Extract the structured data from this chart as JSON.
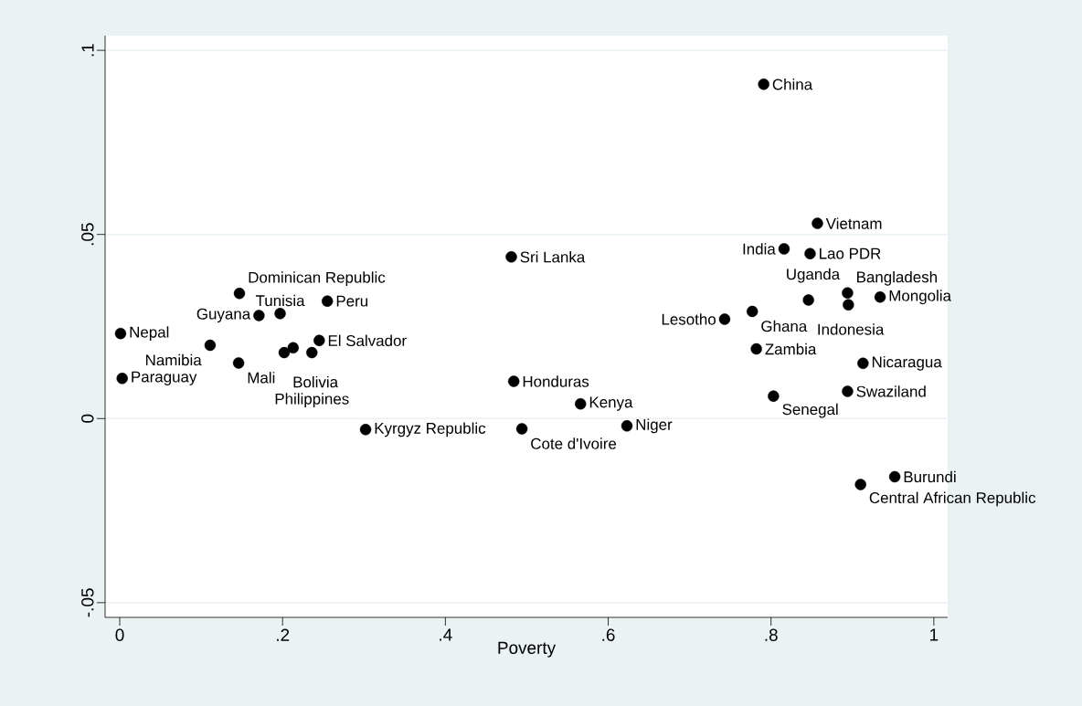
{
  "chart_data": {
    "type": "scatter",
    "xlabel": "Poverty",
    "x": [
      0.791,
      0.857,
      0.816,
      0.848,
      0.894,
      0.934,
      0.846,
      0.895,
      0.777,
      0.743,
      0.782,
      0.913,
      0.894,
      0.803,
      0.952,
      0.91,
      0.623,
      0.494,
      0.302,
      0.566,
      0.484,
      0.481,
      0.147,
      0.255,
      0.171,
      0.197,
      0.001,
      0.003,
      0.111,
      0.146,
      0.245,
      0.202,
      0.213,
      0.236
    ],
    "values": [
      0.0908,
      0.053,
      0.0461,
      0.0448,
      0.0341,
      0.033,
      0.0322,
      0.0309,
      0.0291,
      0.027,
      0.0189,
      0.015,
      0.0074,
      0.0061,
      -0.0158,
      -0.0179,
      -0.002,
      -0.0028,
      -0.003,
      0.004,
      0.0101,
      0.0439,
      0.034,
      0.0319,
      0.028,
      0.0285,
      0.0231,
      0.0109,
      0.0199,
      0.0151,
      0.0212,
      0.0179,
      0.0192,
      0.0179
    ],
    "color": "#000000",
    "marker": "circle",
    "grid": "y",
    "xlim": [
      -0.018,
      1.017
    ],
    "ylim": [
      -0.054,
      0.104
    ],
    "xticks": [
      0,
      {
        "value": 0.2,
        "label": ".2"
      },
      {
        "value": 0.4,
        "label": ".4"
      },
      {
        "value": 0.6,
        "label": ".6"
      },
      {
        "value": 0.8,
        "label": ".8"
      },
      1
    ],
    "yticks": [
      {
        "value": -0.05,
        "label": "-.05"
      },
      0,
      {
        "value": 0.05,
        "label": ".05"
      },
      {
        "value": 0.1,
        "label": ".1"
      }
    ],
    "annotations": [
      {
        "text": "China",
        "x": 0.791,
        "y": 0.0908
      },
      {
        "text": "Vietnam",
        "x": 0.857,
        "y": 0.053
      },
      {
        "text": "India",
        "x": 0.816,
        "y": 0.0461
      },
      {
        "text": "Lao PDR",
        "x": 0.848,
        "y": 0.0448
      },
      {
        "text": "Bangladesh",
        "x": 0.894,
        "y": 0.0341
      },
      {
        "text": "Mongolia",
        "x": 0.934,
        "y": 0.033
      },
      {
        "text": "Indonesia",
        "x": 0.846,
        "y": 0.0322
      },
      {
        "text": "Uganda",
        "x": 0.895,
        "y": 0.0309
      },
      {
        "text": "Ghana",
        "x": 0.777,
        "y": 0.0291
      },
      {
        "text": "Lesotho",
        "x": 0.743,
        "y": 0.027
      },
      {
        "text": "Zambia",
        "x": 0.782,
        "y": 0.0189
      },
      {
        "text": "Nicaragua",
        "x": 0.913,
        "y": 0.015
      },
      {
        "text": "Swaziland",
        "x": 0.894,
        "y": 0.0074
      },
      {
        "text": "Senegal",
        "x": 0.803,
        "y": 0.0061
      },
      {
        "text": "Burundi",
        "x": 0.952,
        "y": -0.0158
      },
      {
        "text": "Central African Republic",
        "x": 0.91,
        "y": -0.0179
      },
      {
        "text": "Niger",
        "x": 0.623,
        "y": -0.002
      },
      {
        "text": "Cote d'Ivoire",
        "x": 0.494,
        "y": -0.0028
      },
      {
        "text": "Kyrgyz Republic",
        "x": 0.302,
        "y": -0.003
      },
      {
        "text": "Kenya",
        "x": 0.566,
        "y": 0.004
      },
      {
        "text": "Honduras",
        "x": 0.484,
        "y": 0.0101
      },
      {
        "text": "Sri Lanka",
        "x": 0.481,
        "y": 0.0439
      },
      {
        "text": "Dominican Republic",
        "x": 0.147,
        "y": 0.034
      },
      {
        "text": "Peru",
        "x": 0.255,
        "y": 0.0319
      },
      {
        "text": "Guyana",
        "x": 0.171,
        "y": 0.028
      },
      {
        "text": "Tunisia",
        "x": 0.197,
        "y": 0.0285
      },
      {
        "text": "Nepal",
        "x": 0.001,
        "y": 0.0231
      },
      {
        "text": "Paraguay",
        "x": 0.003,
        "y": 0.0109
      },
      {
        "text": "Namibia",
        "x": 0.111,
        "y": 0.0199
      },
      {
        "text": "Mali",
        "x": 0.146,
        "y": 0.0151
      },
      {
        "text": "El Salvador",
        "x": 0.245,
        "y": 0.0212
      },
      {
        "text": "Bolivia",
        "x": 0.202,
        "y": 0.0179
      },
      {
        "text": "Philippines",
        "x": 0.236,
        "y": 0.0179
      }
    ]
  }
}
